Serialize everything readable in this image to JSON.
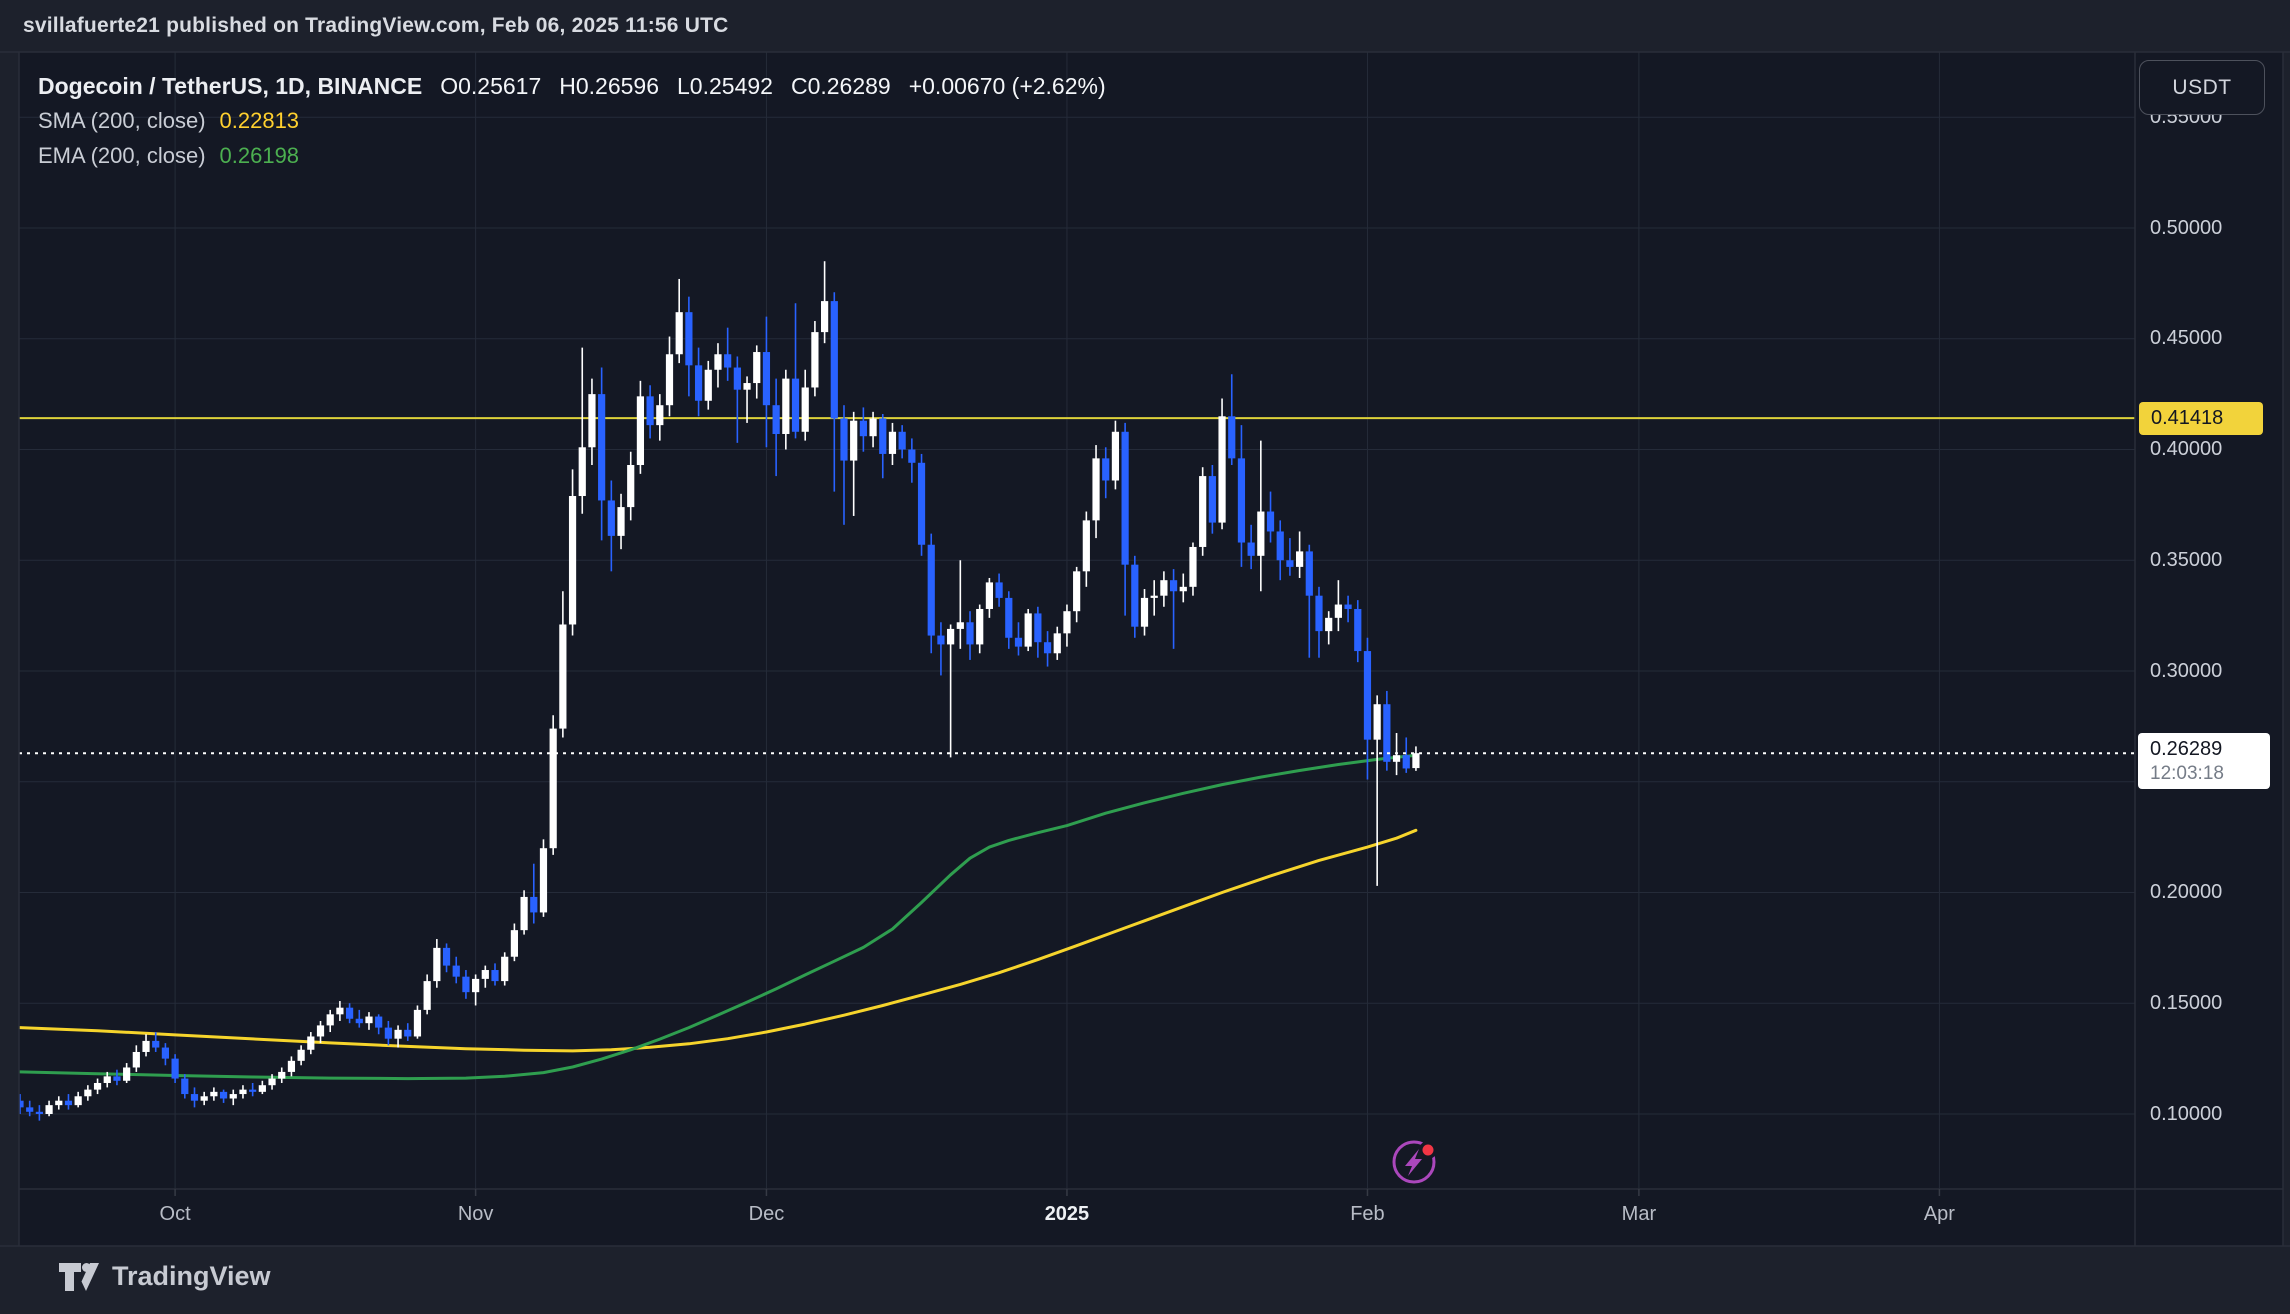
{
  "published_bar": {
    "text": "svillafuerte21 published on TradingView.com, Feb 06, 2025 11:56 UTC"
  },
  "chart_header": {
    "title": "Dogecoin / TetherUS, 1D, BINANCE",
    "values": [
      "O0.25617",
      "H0.26596",
      "L0.25492",
      "C0.26289",
      "+0.00670 (+2.62%)"
    ],
    "indicators": [
      {
        "label": "SMA (200, close)",
        "value": "0.22813",
        "color": "#ffd02e"
      },
      {
        "label": "EMA (200, close)",
        "value": "0.26198",
        "color": "#4caf50"
      }
    ]
  },
  "price_axis": {
    "currency_label": "USDT",
    "labels": [
      {
        "text": "0.55000",
        "price": 0.55,
        "partial": true
      },
      {
        "text": "0.50000",
        "price": 0.5
      },
      {
        "text": "0.45000",
        "price": 0.45
      },
      {
        "text": "0.40000",
        "price": 0.4
      },
      {
        "text": "0.35000",
        "price": 0.35
      },
      {
        "text": "0.30000",
        "price": 0.3
      },
      {
        "text": "0.20000",
        "price": 0.2
      },
      {
        "text": "0.15000",
        "price": 0.15
      },
      {
        "text": "0.10000",
        "price": 0.1
      }
    ],
    "hline_label": {
      "text": "0.41418",
      "price": 0.41418,
      "bg": "#f2d33b",
      "fg": "#131722"
    },
    "last_price_label": {
      "text": "0.26289",
      "countdown": "12:03:18",
      "price": 0.26289,
      "bg": "#ffffff",
      "fg": "#131722",
      "countdown_fg": "#757c87"
    }
  },
  "time_axis": {
    "labels": [
      {
        "text": "Oct",
        "index": 16
      },
      {
        "text": "Nov",
        "index": 47
      },
      {
        "text": "Dec",
        "index": 77
      },
      {
        "text": "2025",
        "index": 108,
        "bold": true
      },
      {
        "text": "Feb",
        "index": 139
      },
      {
        "text": "Mar",
        "index": 167
      },
      {
        "text": "Apr",
        "index": 198
      }
    ]
  },
  "branding": {
    "logo_text": "TradingView"
  },
  "event_marker": {
    "ring_color": "#ab47bc",
    "bolt_color": "#ab47bc",
    "dot_color": "#f23645"
  },
  "chart_data": {
    "type": "candlestick",
    "title": "Dogecoin / TetherUS, 1D, BINANCE",
    "ohlc_last": {
      "o": 0.25617,
      "h": 0.26596,
      "l": 0.25492,
      "c": 0.26289,
      "change": 0.0067,
      "change_pct": 2.62
    },
    "up_color": "#ffffff",
    "down_color": "#2962ff",
    "grid": true,
    "ylim": [
      0.066,
      0.579
    ],
    "price_ticks": [
      0.55,
      0.5,
      0.45,
      0.4,
      0.35,
      0.3,
      0.25,
      0.2,
      0.15,
      0.1
    ],
    "hline": {
      "price": 0.41418,
      "color": "#ded23a"
    },
    "last_price_line": {
      "price": 0.26289,
      "style": "dotted",
      "color": "#ffffff"
    },
    "candles": [
      [
        0.106,
        0.109,
        0.1,
        0.103
      ],
      [
        0.103,
        0.106,
        0.099,
        0.101
      ],
      [
        0.101,
        0.104,
        0.097,
        0.1
      ],
      [
        0.1,
        0.106,
        0.099,
        0.104
      ],
      [
        0.104,
        0.108,
        0.102,
        0.106
      ],
      [
        0.106,
        0.109,
        0.102,
        0.104
      ],
      [
        0.104,
        0.11,
        0.103,
        0.108
      ],
      [
        0.108,
        0.113,
        0.106,
        0.111
      ],
      [
        0.111,
        0.116,
        0.109,
        0.114
      ],
      [
        0.114,
        0.119,
        0.112,
        0.117
      ],
      [
        0.117,
        0.12,
        0.113,
        0.115
      ],
      [
        0.115,
        0.123,
        0.114,
        0.121
      ],
      [
        0.121,
        0.131,
        0.119,
        0.128
      ],
      [
        0.128,
        0.136,
        0.126,
        0.133
      ],
      [
        0.133,
        0.137,
        0.128,
        0.13
      ],
      [
        0.13,
        0.132,
        0.122,
        0.125
      ],
      [
        0.125,
        0.127,
        0.114,
        0.116
      ],
      [
        0.116,
        0.118,
        0.107,
        0.109
      ],
      [
        0.109,
        0.112,
        0.103,
        0.106
      ],
      [
        0.106,
        0.11,
        0.104,
        0.108
      ],
      [
        0.108,
        0.112,
        0.106,
        0.11
      ],
      [
        0.11,
        0.111,
        0.105,
        0.107
      ],
      [
        0.107,
        0.111,
        0.104,
        0.109
      ],
      [
        0.109,
        0.113,
        0.107,
        0.111
      ],
      [
        0.111,
        0.114,
        0.108,
        0.11
      ],
      [
        0.11,
        0.115,
        0.109,
        0.113
      ],
      [
        0.113,
        0.118,
        0.111,
        0.116
      ],
      [
        0.116,
        0.121,
        0.114,
        0.119
      ],
      [
        0.119,
        0.126,
        0.117,
        0.124
      ],
      [
        0.124,
        0.131,
        0.122,
        0.129
      ],
      [
        0.129,
        0.137,
        0.127,
        0.135
      ],
      [
        0.135,
        0.142,
        0.132,
        0.14
      ],
      [
        0.14,
        0.147,
        0.137,
        0.145
      ],
      [
        0.145,
        0.151,
        0.142,
        0.148
      ],
      [
        0.148,
        0.15,
        0.141,
        0.143
      ],
      [
        0.143,
        0.147,
        0.139,
        0.141
      ],
      [
        0.141,
        0.146,
        0.138,
        0.144
      ],
      [
        0.144,
        0.145,
        0.136,
        0.139
      ],
      [
        0.139,
        0.142,
        0.131,
        0.134
      ],
      [
        0.134,
        0.14,
        0.13,
        0.138
      ],
      [
        0.138,
        0.141,
        0.133,
        0.135
      ],
      [
        0.135,
        0.149,
        0.134,
        0.147
      ],
      [
        0.147,
        0.163,
        0.145,
        0.16
      ],
      [
        0.16,
        0.179,
        0.157,
        0.175
      ],
      [
        0.175,
        0.177,
        0.164,
        0.167
      ],
      [
        0.167,
        0.171,
        0.159,
        0.162
      ],
      [
        0.162,
        0.165,
        0.152,
        0.155
      ],
      [
        0.155,
        0.163,
        0.149,
        0.161
      ],
      [
        0.161,
        0.167,
        0.157,
        0.165
      ],
      [
        0.165,
        0.168,
        0.158,
        0.16
      ],
      [
        0.16,
        0.173,
        0.158,
        0.171
      ],
      [
        0.171,
        0.186,
        0.169,
        0.183
      ],
      [
        0.183,
        0.201,
        0.181,
        0.198
      ],
      [
        0.198,
        0.213,
        0.186,
        0.191
      ],
      [
        0.191,
        0.224,
        0.189,
        0.22
      ],
      [
        0.22,
        0.28,
        0.217,
        0.274
      ],
      [
        0.274,
        0.336,
        0.27,
        0.321
      ],
      [
        0.321,
        0.391,
        0.316,
        0.379
      ],
      [
        0.379,
        0.446,
        0.371,
        0.401
      ],
      [
        0.401,
        0.432,
        0.393,
        0.425
      ],
      [
        0.425,
        0.437,
        0.359,
        0.377
      ],
      [
        0.377,
        0.386,
        0.345,
        0.361
      ],
      [
        0.361,
        0.38,
        0.355,
        0.374
      ],
      [
        0.374,
        0.399,
        0.368,
        0.393
      ],
      [
        0.393,
        0.431,
        0.389,
        0.424
      ],
      [
        0.424,
        0.429,
        0.405,
        0.411
      ],
      [
        0.411,
        0.425,
        0.404,
        0.42
      ],
      [
        0.42,
        0.451,
        0.415,
        0.443
      ],
      [
        0.443,
        0.477,
        0.439,
        0.462
      ],
      [
        0.462,
        0.469,
        0.424,
        0.438
      ],
      [
        0.438,
        0.446,
        0.415,
        0.422
      ],
      [
        0.422,
        0.44,
        0.418,
        0.436
      ],
      [
        0.436,
        0.448,
        0.428,
        0.443
      ],
      [
        0.443,
        0.455,
        0.431,
        0.437
      ],
      [
        0.437,
        0.442,
        0.403,
        0.427
      ],
      [
        0.427,
        0.433,
        0.412,
        0.43
      ],
      [
        0.43,
        0.447,
        0.423,
        0.444
      ],
      [
        0.444,
        0.46,
        0.401,
        0.42
      ],
      [
        0.42,
        0.432,
        0.388,
        0.407
      ],
      [
        0.407,
        0.436,
        0.4,
        0.432
      ],
      [
        0.432,
        0.466,
        0.405,
        0.408
      ],
      [
        0.408,
        0.436,
        0.404,
        0.428
      ],
      [
        0.428,
        0.458,
        0.424,
        0.453
      ],
      [
        0.453,
        0.485,
        0.448,
        0.467
      ],
      [
        0.467,
        0.471,
        0.381,
        0.414
      ],
      [
        0.414,
        0.42,
        0.366,
        0.395
      ],
      [
        0.395,
        0.417,
        0.37,
        0.413
      ],
      [
        0.413,
        0.419,
        0.399,
        0.406
      ],
      [
        0.406,
        0.417,
        0.401,
        0.414
      ],
      [
        0.414,
        0.416,
        0.387,
        0.398
      ],
      [
        0.398,
        0.412,
        0.393,
        0.408
      ],
      [
        0.408,
        0.411,
        0.396,
        0.4
      ],
      [
        0.4,
        0.405,
        0.385,
        0.394
      ],
      [
        0.394,
        0.398,
        0.352,
        0.357
      ],
      [
        0.357,
        0.362,
        0.308,
        0.316
      ],
      [
        0.316,
        0.322,
        0.298,
        0.312
      ],
      [
        0.312,
        0.321,
        0.261,
        0.319
      ],
      [
        0.319,
        0.35,
        0.31,
        0.322
      ],
      [
        0.322,
        0.327,
        0.305,
        0.312
      ],
      [
        0.312,
        0.33,
        0.308,
        0.328
      ],
      [
        0.328,
        0.342,
        0.324,
        0.34
      ],
      [
        0.34,
        0.344,
        0.329,
        0.333
      ],
      [
        0.333,
        0.336,
        0.31,
        0.315
      ],
      [
        0.315,
        0.322,
        0.307,
        0.311
      ],
      [
        0.311,
        0.328,
        0.309,
        0.326
      ],
      [
        0.326,
        0.329,
        0.306,
        0.313
      ],
      [
        0.313,
        0.318,
        0.302,
        0.308
      ],
      [
        0.308,
        0.32,
        0.305,
        0.317
      ],
      [
        0.317,
        0.33,
        0.311,
        0.327
      ],
      [
        0.327,
        0.347,
        0.322,
        0.345
      ],
      [
        0.345,
        0.372,
        0.338,
        0.368
      ],
      [
        0.368,
        0.402,
        0.36,
        0.396
      ],
      [
        0.396,
        0.401,
        0.378,
        0.386
      ],
      [
        0.386,
        0.413,
        0.382,
        0.408
      ],
      [
        0.408,
        0.412,
        0.325,
        0.348
      ],
      [
        0.348,
        0.352,
        0.315,
        0.32
      ],
      [
        0.32,
        0.337,
        0.316,
        0.333
      ],
      [
        0.333,
        0.341,
        0.325,
        0.334
      ],
      [
        0.334,
        0.345,
        0.329,
        0.341
      ],
      [
        0.341,
        0.346,
        0.31,
        0.336
      ],
      [
        0.336,
        0.344,
        0.331,
        0.338
      ],
      [
        0.338,
        0.358,
        0.334,
        0.356
      ],
      [
        0.356,
        0.392,
        0.352,
        0.388
      ],
      [
        0.388,
        0.393,
        0.362,
        0.367
      ],
      [
        0.367,
        0.423,
        0.364,
        0.415
      ],
      [
        0.415,
        0.434,
        0.393,
        0.396
      ],
      [
        0.396,
        0.411,
        0.347,
        0.358
      ],
      [
        0.358,
        0.366,
        0.346,
        0.352
      ],
      [
        0.352,
        0.404,
        0.336,
        0.372
      ],
      [
        0.372,
        0.381,
        0.358,
        0.363
      ],
      [
        0.363,
        0.368,
        0.341,
        0.35
      ],
      [
        0.35,
        0.36,
        0.343,
        0.347
      ],
      [
        0.347,
        0.363,
        0.342,
        0.354
      ],
      [
        0.354,
        0.357,
        0.306,
        0.334
      ],
      [
        0.334,
        0.338,
        0.306,
        0.318
      ],
      [
        0.318,
        0.327,
        0.312,
        0.324
      ],
      [
        0.324,
        0.341,
        0.318,
        0.33
      ],
      [
        0.33,
        0.334,
        0.322,
        0.328
      ],
      [
        0.328,
        0.332,
        0.304,
        0.309
      ],
      [
        0.309,
        0.315,
        0.251,
        0.269
      ],
      [
        0.269,
        0.289,
        0.203,
        0.285
      ],
      [
        0.285,
        0.291,
        0.255,
        0.259
      ],
      [
        0.259,
        0.272,
        0.253,
        0.262
      ],
      [
        0.262,
        0.27,
        0.254,
        0.256
      ],
      [
        0.25617,
        0.26596,
        0.25492,
        0.26289
      ]
    ],
    "series": [
      {
        "name": "SMA (200, close)",
        "value": 0.22813,
        "color": "#f6d42c",
        "points": [
          [
            0,
            0.139
          ],
          [
            8,
            0.1376
          ],
          [
            16,
            0.1357
          ],
          [
            24,
            0.1339
          ],
          [
            32,
            0.1321
          ],
          [
            40,
            0.1305
          ],
          [
            46,
            0.1295
          ],
          [
            52,
            0.1288
          ],
          [
            57,
            0.1285
          ],
          [
            61,
            0.129
          ],
          [
            65,
            0.1301
          ],
          [
            69,
            0.1317
          ],
          [
            73,
            0.134
          ],
          [
            77,
            0.137
          ],
          [
            81,
            0.1406
          ],
          [
            85,
            0.1446
          ],
          [
            89,
            0.149
          ],
          [
            93,
            0.1537
          ],
          [
            97,
            0.1585
          ],
          [
            101,
            0.1638
          ],
          [
            105,
            0.1697
          ],
          [
            109,
            0.176
          ],
          [
            114,
            0.184
          ],
          [
            119,
            0.192
          ],
          [
            124,
            0.2
          ],
          [
            129,
            0.2075
          ],
          [
            134,
            0.2145
          ],
          [
            139,
            0.2205
          ],
          [
            142,
            0.2245
          ],
          [
            144,
            0.2281
          ]
        ]
      },
      {
        "name": "EMA (200, close)",
        "value": 0.26198,
        "color": "#2f9e4f",
        "points": [
          [
            0,
            0.119
          ],
          [
            8,
            0.1182
          ],
          [
            16,
            0.1174
          ],
          [
            24,
            0.1167
          ],
          [
            32,
            0.1162
          ],
          [
            40,
            0.116
          ],
          [
            46,
            0.1162
          ],
          [
            50,
            0.117
          ],
          [
            54,
            0.1187
          ],
          [
            57,
            0.1212
          ],
          [
            60,
            0.1248
          ],
          [
            63,
            0.129
          ],
          [
            66,
            0.1338
          ],
          [
            69,
            0.139
          ],
          [
            72,
            0.1447
          ],
          [
            75,
            0.1505
          ],
          [
            78,
            0.1565
          ],
          [
            81,
            0.1628
          ],
          [
            84,
            0.169
          ],
          [
            87,
            0.1752
          ],
          [
            90,
            0.1835
          ],
          [
            93,
            0.1955
          ],
          [
            96,
            0.208
          ],
          [
            98,
            0.2155
          ],
          [
            100,
            0.2205
          ],
          [
            102,
            0.2235
          ],
          [
            105,
            0.227
          ],
          [
            108,
            0.2302
          ],
          [
            112,
            0.2358
          ],
          [
            116,
            0.2405
          ],
          [
            120,
            0.2448
          ],
          [
            124,
            0.2487
          ],
          [
            128,
            0.2521
          ],
          [
            132,
            0.2551
          ],
          [
            136,
            0.2578
          ],
          [
            140,
            0.2601
          ],
          [
            144,
            0.262
          ]
        ]
      }
    ]
  }
}
